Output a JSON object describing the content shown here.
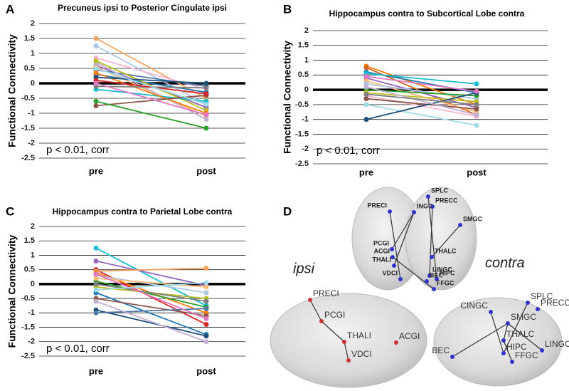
{
  "chart_data": [
    {
      "type": "line",
      "panel": "A",
      "title": "Precuneus ipsi  to  Posterior Cingulate ipsi",
      "y_label": "Functional Connectivity",
      "annotation": "p < 0.01, corr",
      "categories": [
        "pre",
        "post"
      ],
      "ylim": [
        -2.5,
        2
      ],
      "yticks": [
        -2.5,
        -2,
        -1.5,
        -1,
        -0.5,
        0,
        0.5,
        1,
        1.5,
        2
      ],
      "grid": true,
      "reference_line": 0,
      "series": [
        {
          "color": "#f4a460",
          "values": [
            1.5,
            -0.5
          ]
        },
        {
          "color": "#aec7e8",
          "values": [
            1.25,
            -0.7
          ]
        },
        {
          "color": "#f7b6d2",
          "values": [
            0.85,
            -0.2
          ]
        },
        {
          "color": "#9467bd",
          "values": [
            0.6,
            -0.8
          ]
        },
        {
          "color": "#ffbb78",
          "values": [
            0.55,
            -1.1
          ]
        },
        {
          "color": "#4e79a7",
          "values": [
            0.45,
            -0.1
          ]
        },
        {
          "color": "#1f77b4",
          "values": [
            0.3,
            -0.3
          ]
        },
        {
          "color": "#c5b0d5",
          "values": [
            0.7,
            -1.2
          ]
        },
        {
          "color": "#bcbd22",
          "values": [
            0.75,
            -0.9
          ]
        },
        {
          "color": "#17becf",
          "values": [
            -0.2,
            -0.6
          ]
        },
        {
          "color": "#ff7f0e",
          "values": [
            0.35,
            -1
          ]
        },
        {
          "color": "#8c564b",
          "values": [
            -0.75,
            -0.4
          ]
        },
        {
          "color": "#2ca02c",
          "values": [
            -0.6,
            -1.5
          ]
        },
        {
          "color": "#7f7f7f",
          "values": [
            -0.1,
            -0.15
          ]
        },
        {
          "color": "#1f4e79",
          "values": [
            0.2,
            0
          ]
        },
        {
          "color": "#d62728",
          "values": [
            0.1,
            -0.35
          ]
        },
        {
          "color": "#9edae5",
          "values": [
            0.5,
            -0.7
          ]
        },
        {
          "color": "#e377c2",
          "values": [
            0,
            -1.05
          ]
        }
      ]
    },
    {
      "type": "line",
      "panel": "B",
      "title": "Hippocampus contra to Subcortical  Lobe contra",
      "y_label": "Functional Connectivity",
      "annotation": "p < 0.01, corr",
      "categories": [
        "pre",
        "post"
      ],
      "ylim": [
        -2.5,
        2
      ],
      "yticks": [
        -2.5,
        -2,
        -1.5,
        -1,
        -0.5,
        0,
        0.5,
        1,
        1.5,
        2
      ],
      "grid": true,
      "reference_line": 0,
      "series": [
        {
          "color": "#ff7f0e",
          "values": [
            0.8,
            -0.5
          ]
        },
        {
          "color": "#d2691e",
          "values": [
            0.75,
            -0.85
          ]
        },
        {
          "color": "#1f77b4",
          "values": [
            0.6,
            -0.1
          ]
        },
        {
          "color": "#17becf",
          "values": [
            0.55,
            0.2
          ]
        },
        {
          "color": "#9467bd",
          "values": [
            0.4,
            -0.6
          ]
        },
        {
          "color": "#ffbb78",
          "values": [
            0.3,
            -0.75
          ]
        },
        {
          "color": "#aec7e8",
          "values": [
            0.2,
            -0.3
          ]
        },
        {
          "color": "#2ca02c",
          "values": [
            0,
            -0.2
          ]
        },
        {
          "color": "#bcbd22",
          "values": [
            -0.1,
            -0.4
          ]
        },
        {
          "color": "#f7b6d2",
          "values": [
            -0.2,
            -0.9
          ]
        },
        {
          "color": "#8c564b",
          "values": [
            -0.3,
            -0.65
          ]
        },
        {
          "color": "#9edae5",
          "values": [
            -0.5,
            -1.2
          ]
        },
        {
          "color": "#1f4e79",
          "values": [
            -1,
            -0.1
          ]
        },
        {
          "color": "#c5b0d5",
          "values": [
            0.1,
            -0.85
          ]
        },
        {
          "color": "#7f7f7f",
          "values": [
            -0.15,
            -0.5
          ]
        },
        {
          "color": "#e377c2",
          "values": [
            0.45,
            -0.05
          ]
        }
      ]
    },
    {
      "type": "line",
      "panel": "C",
      "title": "Hippocampus contra  to  Parietal Lobe contra",
      "y_label": "Functional Connectivity",
      "annotation": "p < 0.01, corr",
      "categories": [
        "pre",
        "post"
      ],
      "ylim": [
        -2.5,
        2
      ],
      "yticks": [
        -2.5,
        -2,
        -1.5,
        -1,
        -0.5,
        0,
        0.5,
        1,
        1.5,
        2
      ],
      "grid": true,
      "reference_line": 0,
      "series": [
        {
          "color": "#17becf",
          "values": [
            1.25,
            -0.75
          ]
        },
        {
          "color": "#9467bd",
          "values": [
            0.8,
            -0.05
          ]
        },
        {
          "color": "#d62728",
          "values": [
            0.5,
            -1.4
          ]
        },
        {
          "color": "#f4a460",
          "values": [
            0.45,
            0.55
          ]
        },
        {
          "color": "#ff7f0e",
          "values": [
            0.4,
            -1
          ]
        },
        {
          "color": "#aec7e8",
          "values": [
            0.3,
            -0.3
          ]
        },
        {
          "color": "#2ca02c",
          "values": [
            0.1,
            -0.8
          ]
        },
        {
          "color": "#bcbd22",
          "values": [
            -0.1,
            -0.5
          ]
        },
        {
          "color": "#1f77b4",
          "values": [
            -0.3,
            -1.75
          ]
        },
        {
          "color": "#8c564b",
          "values": [
            -0.5,
            -1.1
          ]
        },
        {
          "color": "#1f4e79",
          "values": [
            -0.9,
            -1.8
          ]
        },
        {
          "color": "#4e79a7",
          "values": [
            -1,
            -0.85
          ]
        },
        {
          "color": "#c5b0d5",
          "values": [
            -0.6,
            -2
          ]
        },
        {
          "color": "#ffbb78",
          "values": [
            0.2,
            -0.1
          ]
        },
        {
          "color": "#7f7f7f",
          "values": [
            0,
            -0.6
          ]
        },
        {
          "color": "#e377c2",
          "values": [
            0.35,
            -1.2
          ]
        },
        {
          "color": "#9edae5",
          "values": [
            -0.2,
            0.05
          ]
        }
      ]
    }
  ],
  "brain_figure": {
    "panel": "D",
    "ipsi_label": "ipsi",
    "contra_label": "contra",
    "top_view": [
      "PRECI",
      "SPLC",
      "PRECC",
      "INGC",
      "SMGC",
      "PCGI",
      "ACGI",
      "THALI",
      "THALC",
      "VDCI",
      "LINGC",
      "HIPC",
      "BEC",
      "FFGC"
    ],
    "ipsi_view": [
      "PRECI",
      "PCGI",
      "THALI",
      "ACGI",
      "VDCI"
    ],
    "contra_view": [
      "SPLC",
      "CINGC",
      "PRECC",
      "SMGC",
      "THALC",
      "BEC",
      "HIPC",
      "LINGC",
      "FFGC"
    ]
  }
}
